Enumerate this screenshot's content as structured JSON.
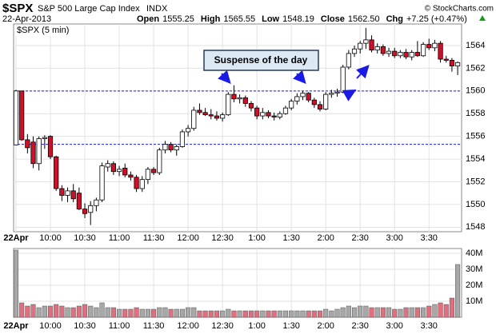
{
  "header": {
    "symbol": "$SPX",
    "name": "S&P 500 Large Cap Index",
    "exchange": "INDX",
    "date": "22-Apr-2013",
    "credit": "© StockCharts.com",
    "stats": [
      {
        "label": "Open",
        "value": "1555.25"
      },
      {
        "label": "High",
        "value": "1565.55"
      },
      {
        "label": "Low",
        "value": "1548.19"
      },
      {
        "label": "Close",
        "value": "1562.50"
      },
      {
        "label": "Chg",
        "value": "+7.25 (+0.47%)"
      }
    ]
  },
  "chart_data": [
    {
      "type": "candlestick",
      "label": "$SPX (5 min)",
      "annotation": "Suspense of the day",
      "categories": [
        "22Apr",
        null,
        null,
        null,
        null,
        null,
        "10:00",
        null,
        null,
        null,
        null,
        null,
        "10:30",
        null,
        null,
        null,
        null,
        null,
        "11:00",
        null,
        null,
        null,
        null,
        null,
        "11:30",
        null,
        null,
        null,
        null,
        null,
        "12:00",
        null,
        null,
        null,
        null,
        null,
        "12:30",
        null,
        null,
        null,
        null,
        null,
        "1:00",
        null,
        null,
        null,
        null,
        null,
        "1:30",
        null,
        null,
        null,
        null,
        null,
        "2:00",
        null,
        null,
        null,
        null,
        null,
        "2:30",
        null,
        null,
        null,
        null,
        null,
        "3:00",
        null,
        null,
        null,
        null,
        null,
        "3:30",
        null,
        null,
        null,
        null,
        null
      ],
      "open": [
        1555.25,
        1560,
        1555.7,
        1555.5,
        1553.6,
        1555.8,
        1556,
        1554.2,
        1551.4,
        1550.8,
        1551.2,
        1551,
        1549.6,
        1549.3,
        1549.9,
        1550.4,
        1553.3,
        1553.6,
        1552.9,
        1553.2,
        1552.6,
        1552.4,
        1551.4,
        1552.2,
        1553.1,
        1552.8,
        1554.8,
        1555.3,
        1554.8,
        1555.1,
        1556.4,
        1556.7,
        1558.3,
        1558.1,
        1557.9,
        1557.8,
        1557.6,
        1557.9,
        1559.7,
        1559.3,
        1559.4,
        1558.9,
        1558.5,
        1557.8,
        1558.1,
        1557.8,
        1557.7,
        1558,
        1558.5,
        1559.1,
        1559.5,
        1559.8,
        1559.2,
        1558.8,
        1558.4,
        1559.7,
        1559.8,
        1559.9,
        1562.1,
        1563.3,
        1563.7,
        1564.2,
        1564.5,
        1563.6,
        1563.9,
        1563.3,
        1563.5,
        1563.1,
        1563.4,
        1563,
        1563.4,
        1563.1,
        1564.1,
        1563.8,
        1564.2,
        1562.8,
        1562.7,
        1562.2
      ],
      "high": [
        1560.1,
        1560,
        1556.2,
        1556,
        1556,
        1556.1,
        1556.1,
        1554.3,
        1551.7,
        1551.5,
        1551.8,
        1551.5,
        1550.1,
        1550.3,
        1550.6,
        1553.7,
        1553.9,
        1553.8,
        1553.4,
        1553.6,
        1552.9,
        1552.6,
        1552.5,
        1553.3,
        1553.3,
        1555,
        1555.6,
        1555.5,
        1555.3,
        1556.6,
        1557,
        1558.6,
        1558.9,
        1558.5,
        1558.4,
        1558.2,
        1558.1,
        1559.9,
        1560.5,
        1559.7,
        1559.6,
        1559.1,
        1558.7,
        1558.5,
        1558.3,
        1558.1,
        1558.2,
        1558.7,
        1559.3,
        1559.8,
        1560,
        1559.9,
        1559.4,
        1559.1,
        1559.9,
        1560.1,
        1560.2,
        1562.3,
        1563.6,
        1564,
        1564.4,
        1565.55,
        1564.9,
        1564.2,
        1564.1,
        1563.8,
        1563.8,
        1563.6,
        1563.7,
        1563.6,
        1564.4,
        1564.3,
        1564.6,
        1564.5,
        1564.4,
        1563.1,
        1562.9,
        1562.6
      ],
      "low": [
        1555.2,
        1555.6,
        1554.5,
        1553.2,
        1553,
        1554.9,
        1554,
        1551.2,
        1550.3,
        1550.2,
        1550.2,
        1549.5,
        1548.8,
        1548.19,
        1549.4,
        1550.2,
        1552.9,
        1552.6,
        1552.5,
        1552.4,
        1552.1,
        1551.1,
        1551.1,
        1551.8,
        1552.6,
        1552.6,
        1554.5,
        1554.6,
        1554.3,
        1555,
        1556,
        1556.5,
        1557.9,
        1557.8,
        1557.5,
        1557.4,
        1557.3,
        1557.8,
        1559,
        1558.9,
        1558.6,
        1558.2,
        1557.5,
        1557.5,
        1557.6,
        1557.4,
        1557.5,
        1557.9,
        1558.3,
        1558.8,
        1559.2,
        1559,
        1558.5,
        1558.2,
        1558.3,
        1559.4,
        1559.5,
        1559.8,
        1561.9,
        1563,
        1563.3,
        1563.7,
        1563.4,
        1563.3,
        1563.1,
        1563,
        1562.9,
        1562.9,
        1562.8,
        1562.7,
        1563,
        1563,
        1563.6,
        1563.5,
        1562.5,
        1562.5,
        1561.7,
        1561.4
      ],
      "close": [
        1560,
        1555.7,
        1555,
        1553.6,
        1555.8,
        1555.9,
        1554.2,
        1551.4,
        1550.8,
        1551.2,
        1550.5,
        1549.6,
        1549.2,
        1549.9,
        1550.4,
        1553.4,
        1553.6,
        1552.9,
        1553.1,
        1552.6,
        1552.4,
        1551.4,
        1552.2,
        1553.1,
        1552.8,
        1554.8,
        1555.3,
        1554.8,
        1555.1,
        1556.4,
        1556.7,
        1558.3,
        1558.1,
        1557.9,
        1557.8,
        1557.6,
        1557.9,
        1559.7,
        1559.3,
        1559.4,
        1558.9,
        1558.5,
        1557.8,
        1558.1,
        1557.8,
        1557.7,
        1558,
        1558.5,
        1559.1,
        1559.5,
        1559.8,
        1559.2,
        1558.8,
        1558.4,
        1559.7,
        1559.8,
        1559.9,
        1562.1,
        1563.3,
        1563.7,
        1564.2,
        1564.5,
        1563.6,
        1563.9,
        1563.3,
        1563.5,
        1563.1,
        1563.4,
        1563,
        1563.4,
        1563.1,
        1564.1,
        1563.8,
        1564.2,
        1562.8,
        1562.7,
        1562.2,
        1562.5
      ],
      "ylim": [
        1547.6,
        1565.9
      ],
      "yticks": [
        1548,
        1550,
        1552,
        1554,
        1556,
        1558,
        1560,
        1562,
        1564
      ],
      "up_color": "#ffffff",
      "down_color": "#d0102a",
      "grid": true,
      "hlines": [
        1560,
        1555.3
      ],
      "hline_color": "#1a1ae6"
    },
    {
      "type": "bar",
      "categories": [
        "22Apr",
        null,
        null,
        null,
        null,
        null,
        "10:00",
        null,
        null,
        null,
        null,
        null,
        "10:30",
        null,
        null,
        null,
        null,
        null,
        "11:00",
        null,
        null,
        null,
        null,
        null,
        "11:30",
        null,
        null,
        null,
        null,
        null,
        "12:00",
        null,
        null,
        null,
        null,
        null,
        "12:30",
        null,
        null,
        null,
        null,
        null,
        "1:00",
        null,
        null,
        null,
        null,
        null,
        "1:30",
        null,
        null,
        null,
        null,
        null,
        "2:00",
        null,
        null,
        null,
        null,
        null,
        "2:30",
        null,
        null,
        null,
        null,
        null,
        "3:00",
        null,
        null,
        null,
        null,
        null,
        "3:30",
        null,
        null,
        null,
        null,
        null
      ],
      "values": [
        42,
        9,
        7,
        8,
        6,
        7,
        7,
        8,
        7,
        6,
        6,
        7,
        8,
        7,
        6,
        9,
        6,
        6,
        5,
        5,
        5,
        6,
        5,
        5,
        5,
        6,
        6,
        5,
        5,
        5,
        6,
        6,
        4,
        4,
        4,
        4,
        4,
        5,
        4,
        4,
        4,
        4,
        4,
        4,
        4,
        4,
        4,
        4,
        4,
        4,
        4,
        4,
        4,
        4,
        5,
        4,
        5,
        6,
        7,
        6,
        7,
        7,
        6,
        6,
        6,
        6,
        5,
        5,
        6,
        6,
        6,
        6,
        7,
        8,
        9,
        8,
        12,
        33
      ],
      "ylim": [
        0,
        43
      ],
      "yticks": [
        {
          "value": 10,
          "label": "10M"
        },
        {
          "value": 20,
          "label": "20M"
        },
        {
          "value": 30,
          "label": "30M"
        },
        {
          "value": 40,
          "label": "40M"
        }
      ],
      "up_color": "#a8a8a8",
      "down_color": "#e07080",
      "grid": true
    }
  ]
}
